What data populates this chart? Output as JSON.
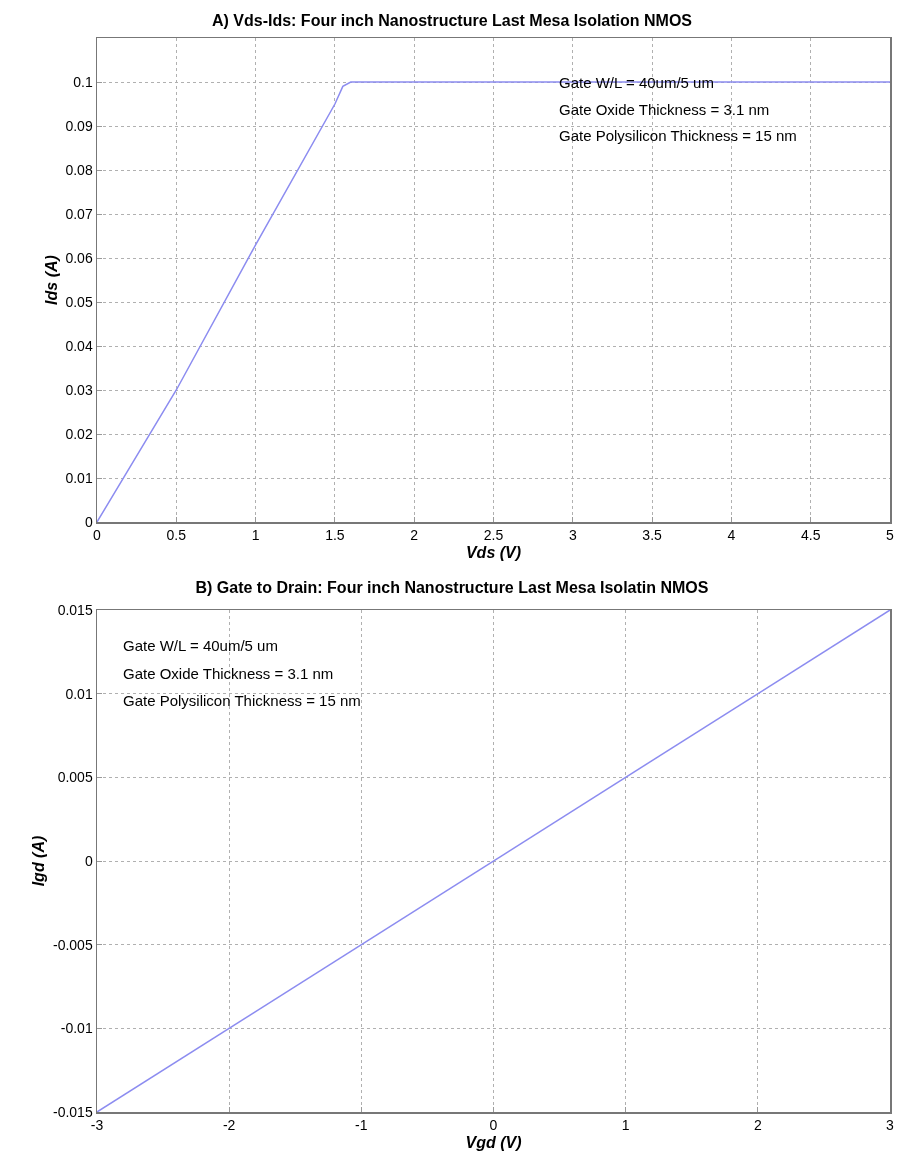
{
  "chart_data": [
    {
      "type": "line",
      "title": "A) Vds-Ids: Four inch Nanostructure Last Mesa Isolation NMOS",
      "xlabel": "Vds (V)",
      "ylabel": "Ids (A)",
      "x": [
        0,
        0.5,
        1,
        1.5,
        1.55,
        1.6,
        5
      ],
      "series": [
        {
          "color": "#8c8cf0",
          "values": [
            0,
            0.03,
            0.063,
            0.095,
            0.099,
            0.1,
            0.1
          ]
        }
      ],
      "xlim": [
        0,
        5
      ],
      "xticks": [
        0,
        0.5,
        1,
        1.5,
        2,
        2.5,
        3,
        3.5,
        4,
        4.5,
        5
      ],
      "ylim": [
        0,
        0.11
      ],
      "yticks": [
        0,
        0.01,
        0.02,
        0.03,
        0.04,
        0.05,
        0.06,
        0.07,
        0.08,
        0.09,
        0.1
      ],
      "grid": true,
      "line_style": "solid",
      "annotations": [
        "Gate W/L = 40um/5 um",
        "Gate Oxide Thickness = 3.1 nm",
        "Gate Polysilicon Thickness = 15 nm"
      ]
    },
    {
      "type": "line",
      "title": "B) Gate to Drain: Four inch Nanostructure Last Mesa Isolatin NMOS",
      "xlabel": "Vgd (V)",
      "ylabel": "Igd (A)",
      "x": [
        -3,
        3
      ],
      "series": [
        {
          "color": "#8c8cf0",
          "values": [
            -0.015,
            0.015
          ]
        }
      ],
      "xlim": [
        -3,
        3
      ],
      "xticks": [
        -3,
        -2,
        -1,
        0,
        1,
        2,
        3
      ],
      "ylim": [
        -0.015,
        0.015
      ],
      "yticks": [
        -0.015,
        -0.01,
        -0.005,
        0,
        0.005,
        0.01,
        0.015
      ],
      "grid": true,
      "line_style": "solid",
      "annotations": [
        "Gate W/L = 40um/5 um",
        "Gate Oxide Thickness = 3.1 nm",
        "Gate Polysilicon Thickness = 15 nm"
      ]
    }
  ]
}
